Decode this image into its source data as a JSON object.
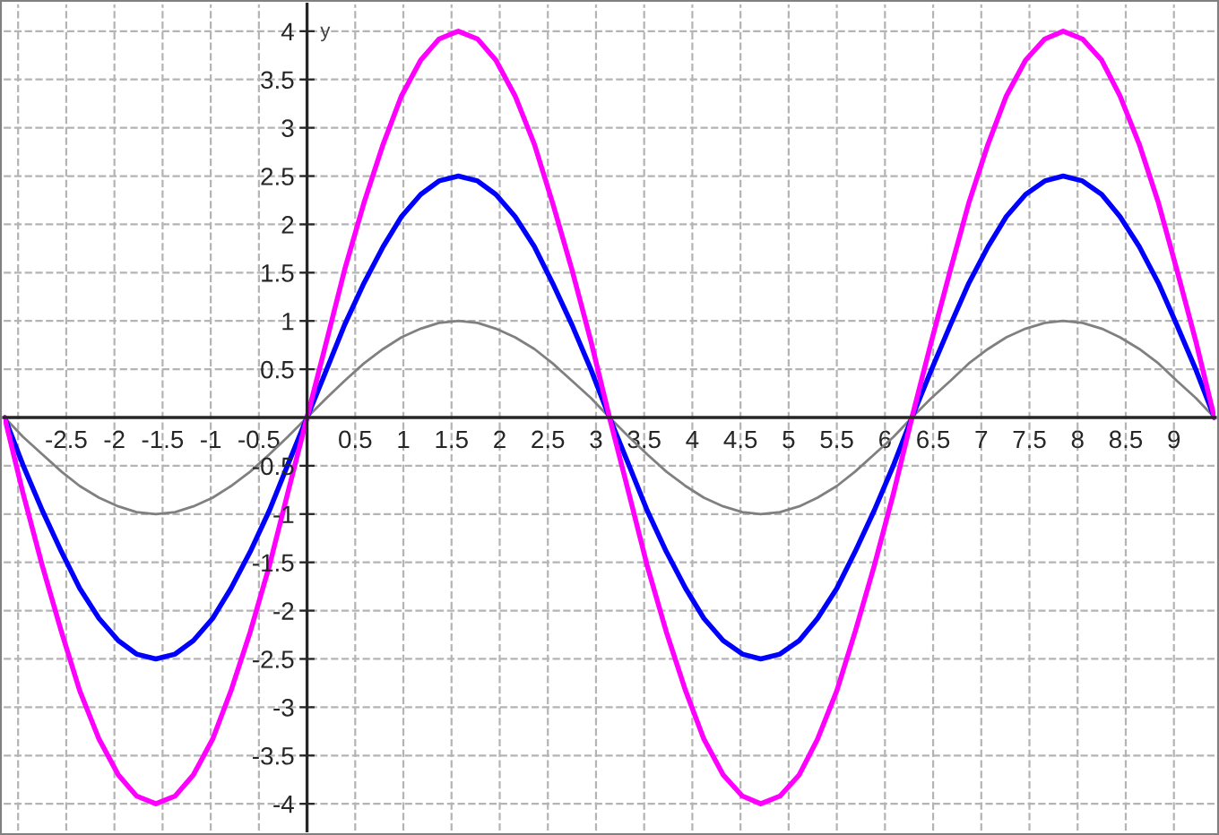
{
  "chart_data": {
    "type": "line",
    "ylabel": "y",
    "x": [
      -3.14,
      -2.95,
      -2.75,
      -2.55,
      -2.36,
      -2.16,
      -1.96,
      -1.77,
      -1.57,
      -1.37,
      -1.18,
      -0.98,
      -0.79,
      -0.59,
      -0.39,
      -0.2,
      0,
      0.2,
      0.39,
      0.59,
      0.79,
      0.98,
      1.18,
      1.37,
      1.57,
      1.77,
      1.96,
      2.16,
      2.36,
      2.55,
      2.75,
      2.95,
      3.14,
      3.34,
      3.53,
      3.73,
      3.93,
      4.12,
      4.32,
      4.52,
      4.71,
      4.91,
      5.11,
      5.3,
      5.5,
      5.69,
      5.89,
      6.09,
      6.28,
      6.48,
      6.68,
      6.87,
      7.07,
      7.26,
      7.46,
      7.66,
      7.85,
      8.05,
      8.25,
      8.44,
      8.64,
      8.84,
      9.03,
      9.23,
      9.42
    ],
    "series": [
      {
        "color": "#808080",
        "values": [
          0,
          -0.2,
          -0.38,
          -0.56,
          -0.71,
          -0.83,
          -0.92,
          -0.98,
          -1,
          -0.98,
          -0.92,
          -0.83,
          -0.71,
          -0.56,
          -0.38,
          -0.2,
          0,
          0.2,
          0.38,
          0.56,
          0.71,
          0.83,
          0.92,
          0.98,
          1,
          0.98,
          0.92,
          0.83,
          0.71,
          0.56,
          0.38,
          0.2,
          0,
          -0.2,
          -0.38,
          -0.56,
          -0.71,
          -0.83,
          -0.92,
          -0.98,
          -1,
          -0.98,
          -0.92,
          -0.83,
          -0.71,
          -0.56,
          -0.38,
          -0.2,
          0,
          0.2,
          0.38,
          0.56,
          0.71,
          0.83,
          0.92,
          0.98,
          1,
          0.98,
          0.92,
          0.83,
          0.71,
          0.56,
          0.38,
          0.2,
          0
        ]
      },
      {
        "color": "#0000ff",
        "values": [
          0,
          -0.49,
          -0.96,
          -1.39,
          -1.77,
          -2.08,
          -2.31,
          -2.45,
          -2.5,
          -2.45,
          -2.31,
          -2.08,
          -1.77,
          -1.39,
          -0.96,
          -0.49,
          0,
          0.49,
          0.96,
          1.39,
          1.77,
          2.08,
          2.31,
          2.45,
          2.5,
          2.45,
          2.31,
          2.08,
          1.77,
          1.39,
          0.96,
          0.49,
          0,
          -0.49,
          -0.96,
          -1.39,
          -1.77,
          -2.08,
          -2.31,
          -2.45,
          -2.5,
          -2.45,
          -2.31,
          -2.08,
          -1.77,
          -1.39,
          -0.96,
          -0.49,
          0,
          0.49,
          0.96,
          1.39,
          1.77,
          2.08,
          2.31,
          2.45,
          2.5,
          2.45,
          2.31,
          2.08,
          1.77,
          1.39,
          0.96,
          0.49,
          0
        ]
      },
      {
        "color": "#ff00ff",
        "values": [
          0,
          -0.78,
          -1.53,
          -2.22,
          -2.83,
          -3.33,
          -3.7,
          -3.92,
          -4,
          -3.92,
          -3.7,
          -3.33,
          -2.83,
          -2.22,
          -1.53,
          -0.78,
          0,
          0.78,
          1.53,
          2.22,
          2.83,
          3.33,
          3.7,
          3.92,
          4,
          3.92,
          3.7,
          3.33,
          2.83,
          2.22,
          1.53,
          0.78,
          0,
          -0.78,
          -1.53,
          -2.22,
          -2.83,
          -3.33,
          -3.7,
          -3.92,
          -4,
          -3.92,
          -3.7,
          -3.33,
          -2.83,
          -2.22,
          -1.53,
          -0.78,
          0,
          0.78,
          1.53,
          2.22,
          2.83,
          3.33,
          3.7,
          3.92,
          4,
          3.92,
          3.7,
          3.33,
          2.83,
          2.22,
          1.53,
          0.78,
          0
        ]
      }
    ],
    "xlim": [
      -3.15,
      9.43
    ],
    "ylim": [
      -4.28,
      4.28
    ],
    "xticks": [
      {
        "value": -3,
        "label": null
      },
      -2.5,
      -2,
      -1.5,
      -1,
      -0.5,
      0.5,
      1,
      1.5,
      2,
      2.5,
      3,
      3.5,
      4,
      4.5,
      5,
      5.5,
      6,
      6.5,
      7,
      7.5,
      8,
      8.5,
      9
    ],
    "yticks": [
      -4,
      -3.5,
      -3,
      -2.5,
      -2,
      -1.5,
      -1,
      -0.5,
      0.5,
      1,
      1.5,
      2,
      2.5,
      3,
      3.5,
      4
    ],
    "grid": true,
    "line_style": "solid",
    "marker": "none"
  }
}
